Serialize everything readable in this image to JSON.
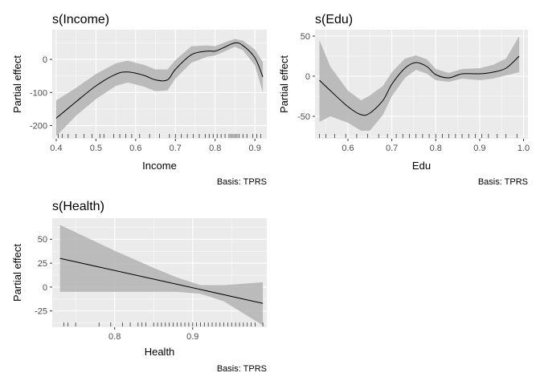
{
  "colors": {
    "panel_bg": "#EBEBEB",
    "grid_major": "#FFFFFF",
    "ribbon": "#B3B3B3",
    "line": "#000000",
    "tick": "#333333"
  },
  "chart_data": [
    {
      "type": "line",
      "title": "s(Income)",
      "xlabel": "Income",
      "ylabel": "Partial effect",
      "caption": "Basis: TPRS",
      "xlim": [
        0.39,
        0.93
      ],
      "ylim": [
        -240,
        90
      ],
      "x_ticks": [
        0.4,
        0.5,
        0.6,
        0.7,
        0.8,
        0.9
      ],
      "x_tick_labels": [
        "0.4",
        "0.5",
        "0.6",
        "0.7",
        "0.8",
        "0.9"
      ],
      "y_ticks": [
        -200,
        -100,
        0
      ],
      "y_tick_labels": [
        "-200",
        "-100",
        "0"
      ],
      "grid": true,
      "series": [
        {
          "x": [
            0.4,
            0.45,
            0.5,
            0.55,
            0.58,
            0.62,
            0.65,
            0.68,
            0.7,
            0.74,
            0.78,
            0.8,
            0.82,
            0.85,
            0.87,
            0.9,
            0.92
          ],
          "y": [
            -178,
            -128,
            -80,
            -45,
            -38,
            -48,
            -62,
            -62,
            -30,
            14,
            25,
            25,
            35,
            50,
            42,
            5,
            -53
          ],
          "lower": [
            -232,
            -170,
            -120,
            -80,
            -70,
            -82,
            -96,
            -94,
            -58,
            -10,
            8,
            12,
            22,
            38,
            28,
            -18,
            -100
          ],
          "upper": [
            -124,
            -86,
            -44,
            -12,
            -4,
            -16,
            -30,
            -30,
            -2,
            40,
            42,
            40,
            50,
            62,
            57,
            30,
            -8
          ]
        }
      ],
      "rug": [
        0.405,
        0.415,
        0.43,
        0.45,
        0.47,
        0.49,
        0.51,
        0.52,
        0.545,
        0.56,
        0.575,
        0.59,
        0.61,
        0.635,
        0.66,
        0.685,
        0.7,
        0.715,
        0.73,
        0.745,
        0.76,
        0.775,
        0.785,
        0.795,
        0.805,
        0.815,
        0.825,
        0.835,
        0.84,
        0.845,
        0.85,
        0.855,
        0.86,
        0.87,
        0.88,
        0.895,
        0.905,
        0.915
      ]
    },
    {
      "type": "line",
      "title": "s(Edu)",
      "xlabel": "Edu",
      "ylabel": "Partial effect",
      "caption": "Basis: TPRS",
      "xlim": [
        0.525,
        1.01
      ],
      "ylim": [
        -78,
        58
      ],
      "x_ticks": [
        0.6,
        0.7,
        0.8,
        0.9,
        1.0
      ],
      "x_tick_labels": [
        "0.6",
        "0.7",
        "0.8",
        "0.9",
        "1.0"
      ],
      "y_ticks": [
        -50,
        0,
        50
      ],
      "y_tick_labels": [
        "-50",
        "0",
        "50"
      ],
      "grid": true,
      "series": [
        {
          "x": [
            0.535,
            0.56,
            0.6,
            0.63,
            0.65,
            0.68,
            0.7,
            0.73,
            0.755,
            0.78,
            0.8,
            0.83,
            0.86,
            0.9,
            0.93,
            0.96,
            0.99
          ],
          "y": [
            -5,
            -18,
            -38,
            -48,
            -46,
            -30,
            -10,
            10,
            17,
            12,
            2,
            -2,
            3,
            3,
            5,
            10,
            25
          ],
          "lower": [
            -57,
            -50,
            -58,
            -68,
            -68,
            -48,
            -25,
            -2,
            8,
            3,
            -5,
            -7,
            -3,
            -5,
            -3,
            1,
            5
          ],
          "upper": [
            45,
            12,
            -18,
            -30,
            -24,
            -12,
            5,
            22,
            26,
            21,
            9,
            4,
            9,
            10,
            14,
            22,
            50
          ]
        }
      ],
      "rug": [
        0.535,
        0.55,
        0.57,
        0.595,
        0.62,
        0.645,
        0.67,
        0.69,
        0.71,
        0.725,
        0.74,
        0.755,
        0.77,
        0.785,
        0.8,
        0.815,
        0.83,
        0.845,
        0.86,
        0.875,
        0.89,
        0.905,
        0.92,
        0.94,
        0.96,
        0.985
      ]
    },
    {
      "type": "line",
      "title": "s(Health)",
      "xlabel": "Health",
      "ylabel": "Partial effect",
      "caption": "Basis: TPRS",
      "xlim": [
        0.72,
        0.995
      ],
      "ylim": [
        -42,
        72
      ],
      "x_ticks": [
        0.8,
        0.9
      ],
      "x_tick_labels": [
        "0.8",
        "0.9"
      ],
      "y_ticks": [
        -25,
        0,
        25,
        50
      ],
      "y_tick_labels": [
        "-25",
        "0",
        "25",
        "50"
      ],
      "grid": true,
      "series": [
        {
          "x": [
            0.73,
            0.99
          ],
          "y": [
            30,
            -17
          ],
          "lower": [
            -5,
            -40
          ],
          "upper": [
            65,
            5
          ],
          "band_x": [
            0.73,
            0.8,
            0.85,
            0.88,
            0.91,
            0.94,
            0.99
          ],
          "band_lower": [
            -5,
            -5,
            -5,
            -5,
            -7,
            -15,
            -40
          ],
          "band_upper": [
            65,
            38,
            20,
            10,
            2,
            2,
            5
          ]
        }
      ],
      "rug": [
        0.735,
        0.74,
        0.75,
        0.78,
        0.795,
        0.81,
        0.82,
        0.83,
        0.835,
        0.84,
        0.85,
        0.855,
        0.86,
        0.865,
        0.87,
        0.875,
        0.88,
        0.885,
        0.89,
        0.895,
        0.9,
        0.905,
        0.91,
        0.915,
        0.92,
        0.925,
        0.93,
        0.935,
        0.94,
        0.945,
        0.95,
        0.955,
        0.96,
        0.965,
        0.97,
        0.975,
        0.98,
        0.99
      ]
    }
  ]
}
